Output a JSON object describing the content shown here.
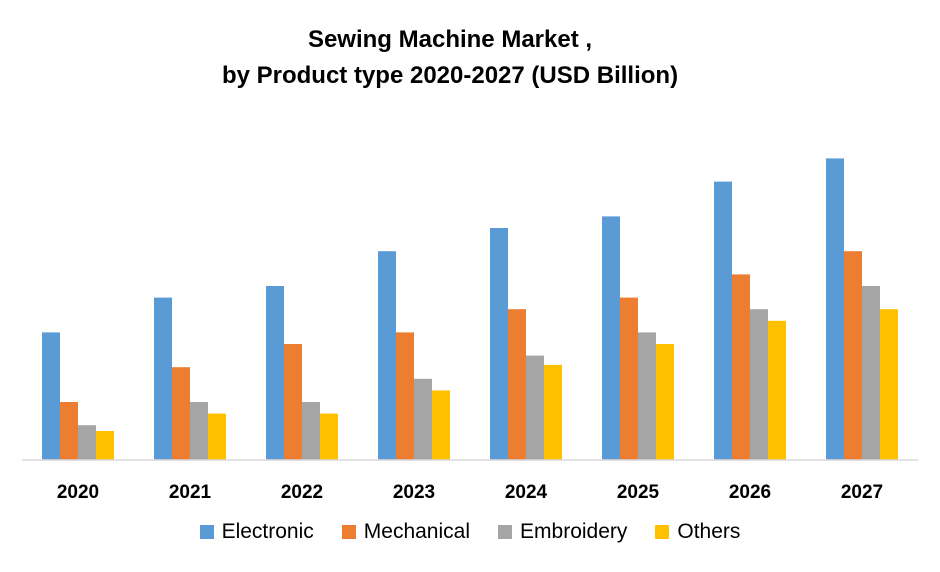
{
  "chart_data": {
    "type": "bar",
    "title": "Sewing Machine Market ,",
    "subtitle": "by Product type 2020-2027 (USD Billion)",
    "xlabel": "",
    "ylabel": "",
    "categories": [
      "2020",
      "2021",
      "2022",
      "2023",
      "2024",
      "2025",
      "2026",
      "2027"
    ],
    "series": [
      {
        "name": "Electronic",
        "color": "#5B9BD5",
        "values": [
          11,
          14,
          15,
          18,
          20,
          21,
          24,
          26
        ]
      },
      {
        "name": "Mechanical",
        "color": "#ED7D31",
        "values": [
          5,
          8,
          10,
          11,
          13,
          14,
          16,
          18
        ]
      },
      {
        "name": "Embroidery",
        "color": "#A5A5A5",
        "values": [
          3,
          5,
          5,
          7,
          9,
          11,
          13,
          15
        ]
      },
      {
        "name": "Others",
        "color": "#FFC000",
        "values": [
          2.5,
          4,
          4,
          6,
          8.2,
          10,
          12,
          13
        ]
      }
    ],
    "ylim": [
      0,
      30
    ],
    "grid": false,
    "legend_position": "bottom"
  }
}
